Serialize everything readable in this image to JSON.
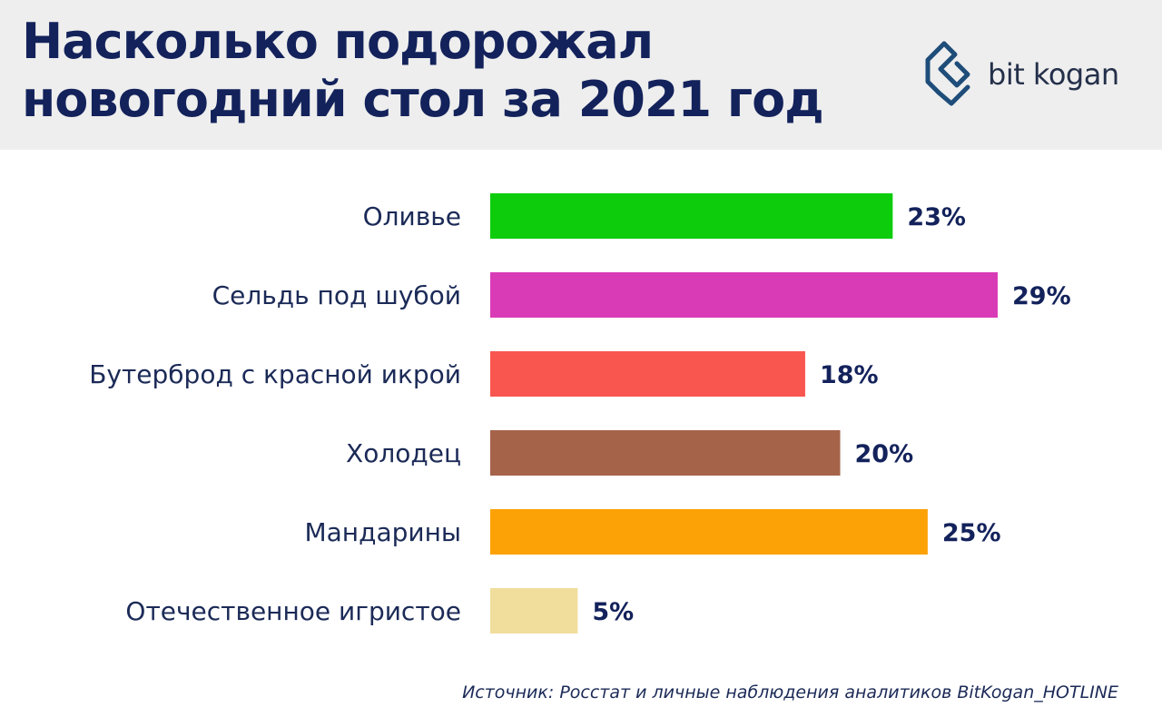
{
  "title": "Насколько подорожал новогодний стол за 2021 год",
  "logo": {
    "text": "bit kogan",
    "icon": "bitkogan-logo-icon",
    "color": "#1e4d7a"
  },
  "chart_data": {
    "type": "bar",
    "orientation": "horizontal",
    "categories": [
      "Оливье",
      "Сельдь под шубой",
      "Бутерброд с красной икрой",
      "Холодец",
      "Мандарины",
      "Отечественное игристое"
    ],
    "values": [
      23,
      29,
      18,
      20,
      25,
      5
    ],
    "value_labels": [
      "23%",
      "29%",
      "18%",
      "20%",
      "25%",
      "5%"
    ],
    "colors": [
      "#0ccc0c",
      "#d93bb7",
      "#f95650",
      "#a5634a",
      "#fca106",
      "#f1de9c"
    ],
    "unit": "%",
    "xlim": [
      0,
      29
    ],
    "grid": false
  },
  "source": "Источник: Росстат и личные наблюдения аналитиков BitKogan_HOTLINE"
}
